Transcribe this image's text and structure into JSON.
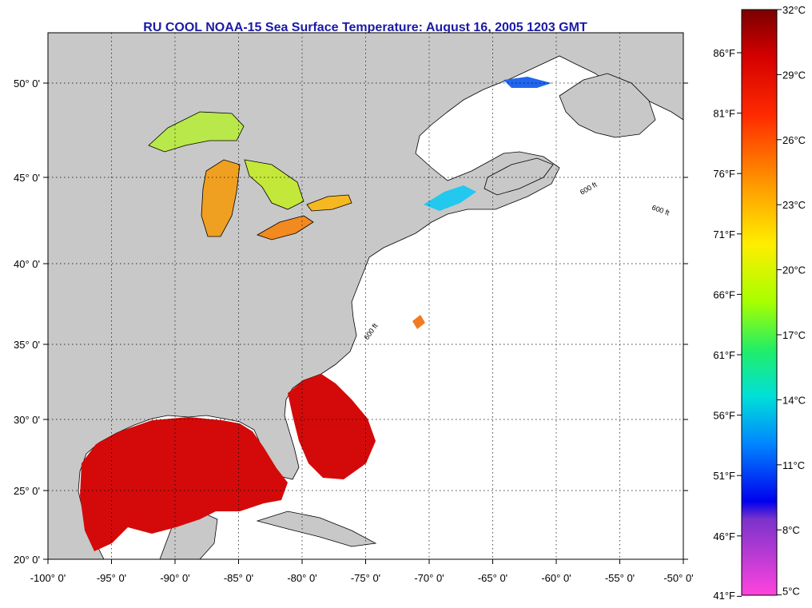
{
  "title": "RU COOL  NOAA-15  Sea Surface Temperature:  August 16, 2005 1203 GMT",
  "colors": {
    "land": "#c8c8c8",
    "ocean": "#ffffff",
    "title": "#1a1aa6",
    "sst_warm": "#d40a0a",
    "sst_mid": "#ffcc00",
    "sst_cool": "#3ddc8a"
  },
  "map": {
    "lon_range": [
      -100,
      -50
    ],
    "lat_range": [
      20,
      52.5
    ],
    "lon_ticks": [
      "-100° 0'",
      "-95° 0'",
      "-90° 0'",
      "-85° 0'",
      "-80° 0'",
      "-75° 0'",
      "-70° 0'",
      "-65° 0'",
      "-60° 0'",
      "-55° 0'",
      "-50° 0'"
    ],
    "lat_ticks": [
      "20° 0'",
      "25° 0'",
      "30° 0'",
      "35° 0'",
      "40° 0'",
      "45° 0'",
      "50° 0'"
    ],
    "contour_label": "600 ft"
  },
  "colorbar": {
    "celsius_labels": [
      "32°C",
      "29°C",
      "26°C",
      "23°C",
      "20°C",
      "17°C",
      "14°C",
      "11°C",
      "8°C",
      "5°C"
    ],
    "fahrenheit_labels": [
      "86°F",
      "81°F",
      "76°F",
      "71°F",
      "66°F",
      "61°F",
      "56°F",
      "51°F",
      "46°F",
      "41°F"
    ]
  }
}
